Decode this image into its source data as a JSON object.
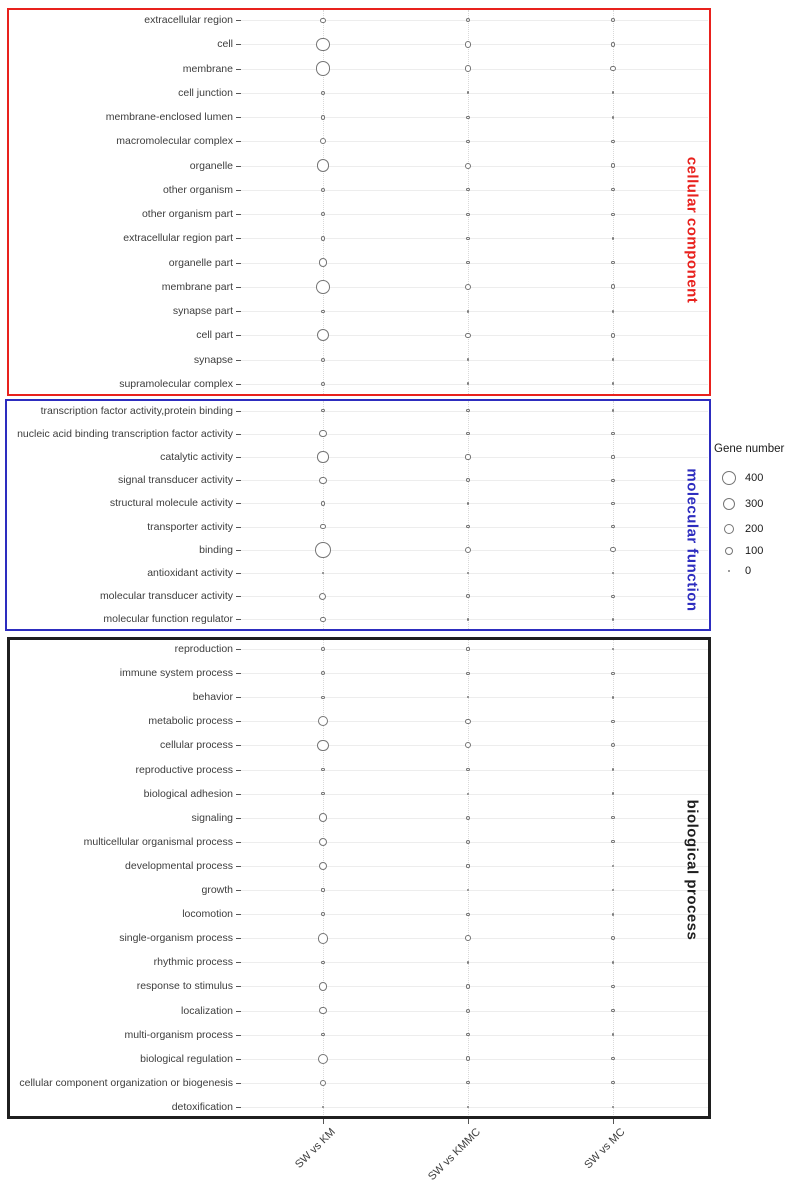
{
  "chart_data": {
    "type": "scatter",
    "subtype": "bubble-dotplot",
    "title": "",
    "xlabel": "",
    "ylabel": "",
    "x_categories": [
      "SW vs KM",
      "SW vs KMMC",
      "SW vs MC"
    ],
    "legend": {
      "title": "Gene number",
      "position": "right",
      "sizes": [
        400,
        300,
        200,
        100,
        0
      ]
    },
    "grid": true,
    "bubble_stroke_color": "#757575",
    "sections": [
      {
        "name": "cellular component",
        "color": "#e8211d",
        "rows": [
          {
            "label": "extracellular region",
            "values": [
              25,
              9,
              6
            ]
          },
          {
            "label": "cell",
            "values": [
              320,
              46,
              17
            ]
          },
          {
            "label": "membrane",
            "values": [
              430,
              55,
              33
            ]
          },
          {
            "label": "cell junction",
            "values": [
              12,
              1,
              1
            ]
          },
          {
            "label": "membrane-enclosed lumen",
            "values": [
              20,
              3,
              1
            ]
          },
          {
            "label": "macromolecular complex",
            "values": [
              45,
              6,
              3
            ]
          },
          {
            "label": "organelle",
            "values": [
              280,
              39,
              12
            ]
          },
          {
            "label": "other organism",
            "values": [
              9,
              3,
              2
            ]
          },
          {
            "label": "other organism part",
            "values": [
              12,
              3,
              2
            ]
          },
          {
            "label": "extracellular region part",
            "values": [
              12,
              2,
              1
            ]
          },
          {
            "label": "organelle part",
            "values": [
              125,
              6,
              2
            ]
          },
          {
            "label": "membrane part",
            "values": [
              360,
              39,
              21
            ]
          },
          {
            "label": "synapse part",
            "values": [
              3,
              1,
              1
            ]
          },
          {
            "label": "cell part",
            "values": [
              260,
              33,
              12
            ]
          },
          {
            "label": "synapse",
            "values": [
              9,
              1,
              1
            ]
          },
          {
            "label": "supramolecular complex",
            "values": [
              17,
              1,
              1
            ]
          }
        ]
      },
      {
        "name": "molecular function",
        "color": "#2d2dbf",
        "rows": [
          {
            "label": "transcription factor activity,protein binding",
            "values": [
              3,
              2,
              1
            ]
          },
          {
            "label": "nucleic acid binding transcription factor activity",
            "values": [
              70,
              3,
              2
            ]
          },
          {
            "label": "catalytic activity",
            "values": [
              225,
              26,
              3
            ]
          },
          {
            "label": "signal transducer activity",
            "values": [
              70,
              6,
              2
            ]
          },
          {
            "label": "structural molecule activity",
            "values": [
              17,
              1,
              2
            ]
          },
          {
            "label": "transporter activity",
            "values": [
              33,
              2,
              2
            ]
          },
          {
            "label": "binding",
            "values": [
              500,
              46,
              26
            ]
          },
          {
            "label": "antioxidant activity",
            "values": [
              1,
              1,
              0
            ]
          },
          {
            "label": "molecular transducer activity",
            "values": [
              63,
              6,
              2
            ]
          },
          {
            "label": "molecular function regulator",
            "values": [
              33,
              1,
              1
            ]
          }
        ]
      },
      {
        "name": "biological process",
        "color": "#1f1f1f",
        "rows": [
          {
            "label": "reproduction",
            "values": [
              6,
              3,
              0
            ]
          },
          {
            "label": "immune system process",
            "values": [
              12,
              3,
              3
            ]
          },
          {
            "label": "behavior",
            "values": [
              2,
              0,
              1
            ]
          },
          {
            "label": "metabolic process",
            "values": [
              165,
              26,
              3
            ]
          },
          {
            "label": "cellular process",
            "values": [
              245,
              39,
              9
            ]
          },
          {
            "label": "reproductive process",
            "values": [
              6,
              2,
              1
            ]
          },
          {
            "label": "biological adhesion",
            "values": [
              6,
              0,
              1
            ]
          },
          {
            "label": "signaling",
            "values": [
              115,
              9,
              2
            ]
          },
          {
            "label": "multicellular organismal process",
            "values": [
              100,
              9,
              2
            ]
          },
          {
            "label": "developmental process",
            "values": [
              90,
              3,
              1
            ]
          },
          {
            "label": "growth",
            "values": [
              3,
              0,
              0
            ]
          },
          {
            "label": "locomotion",
            "values": [
              6,
              3,
              1
            ]
          },
          {
            "label": "single-organism process",
            "values": [
              210,
              33,
              6
            ]
          },
          {
            "label": "rhythmic process",
            "values": [
              2,
              1,
              1
            ]
          },
          {
            "label": "response to stimulus",
            "values": [
              125,
              12,
              3
            ]
          },
          {
            "label": "localization",
            "values": [
              80,
              9,
              2
            ]
          },
          {
            "label": "multi-organism process",
            "values": [
              6,
              2,
              1
            ]
          },
          {
            "label": "biological regulation",
            "values": [
              165,
              21,
              3
            ]
          },
          {
            "label": "cellular component organization or biogenesis",
            "values": [
              55,
              3,
              2
            ]
          },
          {
            "label": "detoxification",
            "values": [
              1,
              1,
              0
            ]
          }
        ]
      }
    ]
  }
}
